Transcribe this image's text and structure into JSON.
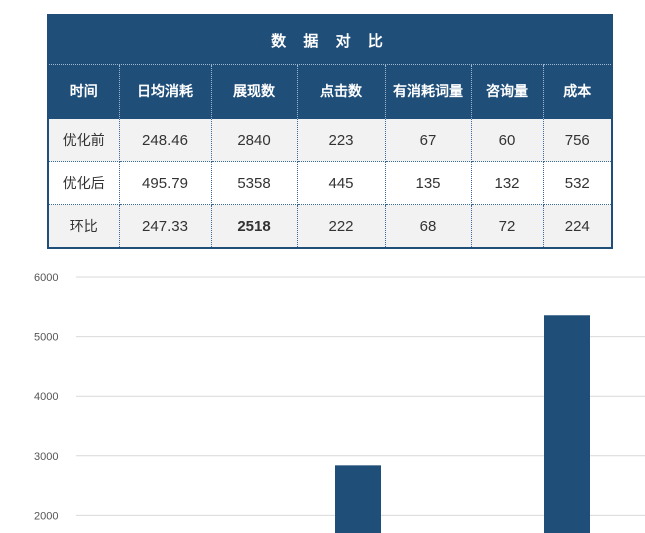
{
  "table": {
    "title": "数 据 对 比",
    "headers": [
      "时间",
      "日均消耗",
      "展现数",
      "点击数",
      "有消耗词量",
      "咨询量",
      "成本"
    ],
    "rows": [
      [
        "优化前",
        "248.46",
        "2840",
        "223",
        "67",
        "60",
        "756"
      ],
      [
        "优化后",
        "495.79",
        "5358",
        "445",
        "135",
        "132",
        "532"
      ],
      [
        "环比",
        "247.33",
        "2518",
        "222",
        "68",
        "72",
        "224"
      ]
    ]
  },
  "chart_data": {
    "type": "bar",
    "title": "",
    "xlabel": "",
    "ylabel": "",
    "ylim": [
      2000,
      6000
    ],
    "yticks": [
      6000,
      5000,
      4000,
      3000,
      2000
    ],
    "grid": true,
    "bar_color": "#1f4e79",
    "values": [
      2840,
      5358
    ]
  }
}
